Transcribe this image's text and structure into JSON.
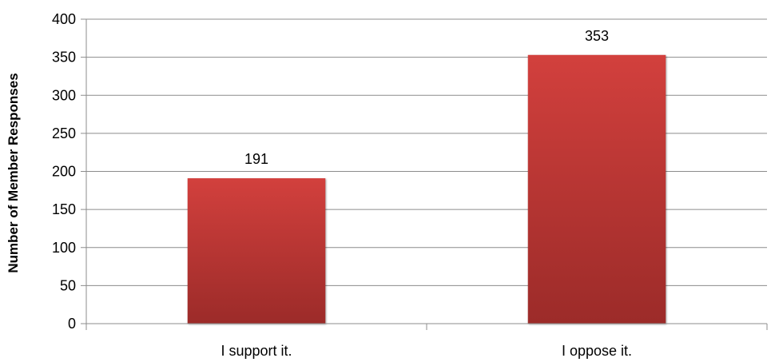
{
  "chart_data": {
    "type": "bar",
    "categories": [
      "I support it.",
      "I oppose it."
    ],
    "values": [
      191,
      353
    ],
    "data_labels": [
      "191",
      "353"
    ],
    "title": "",
    "xlabel": "",
    "ylabel": "Number of Member Responses",
    "ylim": [
      0,
      400
    ],
    "yticks": [
      0,
      50,
      100,
      150,
      200,
      250,
      300,
      350,
      400
    ],
    "ytick_labels": [
      "0",
      "50",
      "100",
      "150",
      "200",
      "250",
      "300",
      "350",
      "400"
    ],
    "grid": true,
    "legend": "none",
    "bar_color_top": "#d2403d",
    "bar_color_bottom": "#9c2b29"
  }
}
